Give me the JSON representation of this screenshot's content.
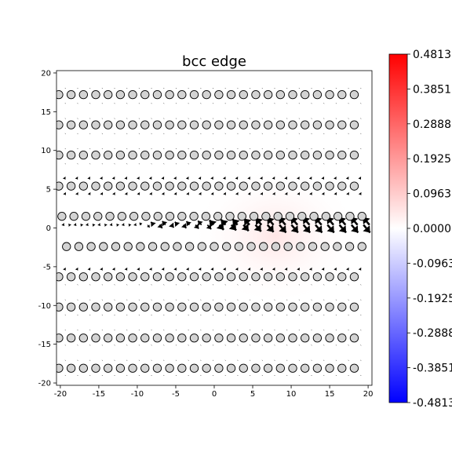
{
  "chart_data": {
    "type": "scatter",
    "title": "bcc edge",
    "xlabel": "",
    "ylabel": "",
    "xlim": [
      -20.5,
      20.5
    ],
    "ylim": [
      -20.3,
      20.3
    ],
    "x_ticks": [
      -20,
      -15,
      -10,
      -5,
      0,
      5,
      10,
      15,
      20
    ],
    "y_ticks": [
      20,
      15,
      10,
      5,
      0,
      -5,
      -10,
      -15,
      -20
    ],
    "grid": false,
    "atom_rows": [
      {
        "y": 17.2,
        "x_start": -20.2,
        "x_end": 19.7,
        "spacing": 1.6
      },
      {
        "y": 13.3,
        "x_start": -20.2,
        "x_end": 19.7,
        "spacing": 1.6
      },
      {
        "y": 9.4,
        "x_start": -20.2,
        "x_end": 19.7,
        "spacing": 1.6
      },
      {
        "y": 5.4,
        "x_start": -20.2,
        "x_end": 19.7,
        "spacing": 1.6
      },
      {
        "y": 1.5,
        "x_start": -19.8,
        "x_end": 20.5,
        "spacing": 1.56
      },
      {
        "y": -2.4,
        "x_start": -19.2,
        "x_end": 19.7,
        "spacing": 1.6
      },
      {
        "y": -6.3,
        "x_start": -20.2,
        "x_end": 19.7,
        "spacing": 1.6
      },
      {
        "y": -10.2,
        "x_start": -20.2,
        "x_end": 19.7,
        "spacing": 1.6
      },
      {
        "y": -14.2,
        "x_start": -20.2,
        "x_end": 19.7,
        "spacing": 1.6
      },
      {
        "y": -18.1,
        "x_start": -20.2,
        "x_end": 19.7,
        "spacing": 1.6
      }
    ],
    "strain_field": {
      "center_x": 8.0,
      "center_y": -1.0,
      "peak": 0.02
    },
    "colorbar": {
      "cmap": "bwr",
      "min": -0.4813,
      "max": 0.4813,
      "tick_values": [
        0.4813,
        0.3851,
        0.2888,
        0.1925,
        0.0963,
        0.0,
        -0.0963,
        -0.1925,
        -0.2888,
        -0.3851,
        -0.4813
      ],
      "tick_labels": [
        "0.4813",
        "0.3851",
        "0.2888",
        "0.1925",
        "0.0963",
        "0.0000",
        "-0.0963",
        "-0.1925",
        "-0.2888",
        "-0.3851",
        "-0.4813"
      ],
      "colors": {
        "max": "#ff0000",
        "mid": "#ffffff",
        "min": "#0000ff"
      }
    },
    "atom_fill": "#d3d3d3",
    "arrow_color": "#000000"
  }
}
